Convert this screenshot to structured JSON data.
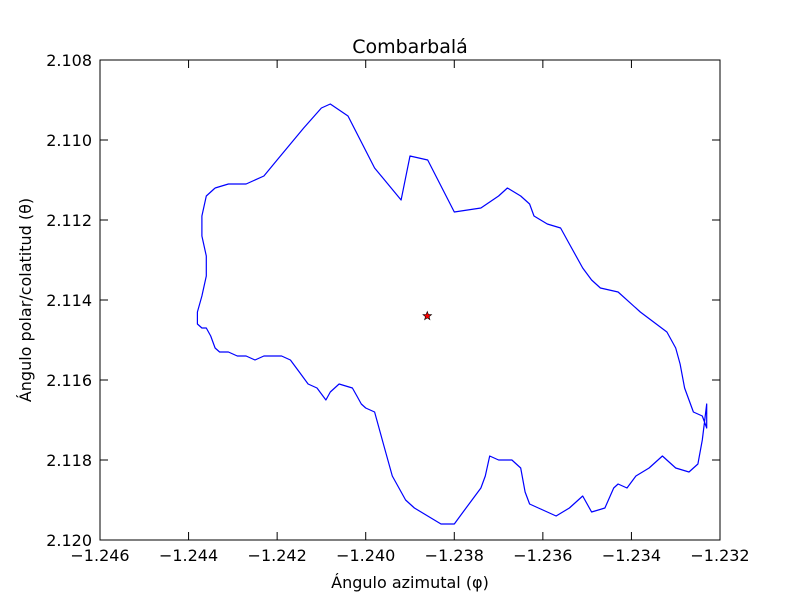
{
  "chart_data": {
    "type": "line",
    "title": "Combarbalá",
    "xlabel": "Ángulo azimutal (φ)",
    "ylabel": "Ángulo polar/colatitud (θ)",
    "xlim": [
      -1.246,
      -1.232
    ],
    "ylim": [
      2.12,
      2.108
    ],
    "y_inverted": true,
    "grid": false,
    "x_ticks": [
      -1.246,
      -1.244,
      -1.242,
      -1.24,
      -1.238,
      -1.236,
      -1.234,
      -1.232
    ],
    "x_tick_labels": [
      "−1.246",
      "−1.244",
      "−1.242",
      "−1.240",
      "−1.238",
      "−1.236",
      "−1.234",
      "−1.232"
    ],
    "y_ticks": [
      2.108,
      2.11,
      2.112,
      2.114,
      2.116,
      2.118,
      2.12
    ],
    "y_tick_labels": [
      "2.108",
      "2.110",
      "2.112",
      "2.114",
      "2.116",
      "2.118",
      "2.120"
    ],
    "colors": {
      "boundary": "#0000ff",
      "center_fill": "#ff0000",
      "center_edge": "#000000"
    },
    "series": [
      {
        "marker": "none",
        "color": "#0000ff",
        "x": [
          -1.2434,
          -1.2431,
          -1.2427,
          -1.2423,
          -1.242,
          -1.2417,
          -1.2414,
          -1.241,
          -1.2408,
          -1.2404,
          -1.2398,
          -1.2392,
          -1.239,
          -1.2386,
          -1.238,
          -1.2374,
          -1.237,
          -1.2368,
          -1.2365,
          -1.2363,
          -1.2362,
          -1.2359,
          -1.2356,
          -1.2354,
          -1.2351,
          -1.2349,
          -1.2347,
          -1.2343,
          -1.2338,
          -1.2332,
          -1.233,
          -1.2329,
          -1.2328,
          -1.2326,
          -1.2324,
          -1.2323,
          -1.2323,
          -1.2324,
          -1.2325,
          -1.2327,
          -1.233,
          -1.2333,
          -1.2336,
          -1.2339,
          -1.2341,
          -1.2343,
          -1.2344,
          -1.2346,
          -1.2349,
          -1.2351,
          -1.2354,
          -1.2357,
          -1.2359,
          -1.2361,
          -1.2363,
          -1.2364,
          -1.2365,
          -1.2367,
          -1.237,
          -1.2372,
          -1.2373,
          -1.2374,
          -1.2376,
          -1.2378,
          -1.238,
          -1.2383,
          -1.2386,
          -1.2389,
          -1.2391,
          -1.2394,
          -1.2396,
          -1.2398,
          -1.24,
          -1.2401,
          -1.2402,
          -1.2403,
          -1.2406,
          -1.2408,
          -1.2409,
          -1.2411,
          -1.2413,
          -1.2415,
          -1.2417,
          -1.2419,
          -1.2421,
          -1.2423,
          -1.2425,
          -1.2427,
          -1.2429,
          -1.2431,
          -1.2433,
          -1.2434,
          -1.2435,
          -1.2436,
          -1.2437,
          -1.2438,
          -1.2438,
          -1.2437,
          -1.2436,
          -1.2436,
          -1.2437,
          -1.2437,
          -1.2436,
          -1.2434
        ],
        "y": [
          2.1112,
          2.1111,
          2.1111,
          2.1109,
          2.1105,
          2.1101,
          2.1097,
          2.1092,
          2.1091,
          2.1094,
          2.1107,
          2.1115,
          2.1104,
          2.1105,
          2.1118,
          2.1117,
          2.1114,
          2.1112,
          2.1114,
          2.1116,
          2.1119,
          2.1121,
          2.1122,
          2.1126,
          2.1132,
          2.1135,
          2.1137,
          2.1138,
          2.1143,
          2.1148,
          2.1152,
          2.1156,
          2.1162,
          2.1168,
          2.1169,
          2.1172,
          2.1166,
          2.1175,
          2.1181,
          2.1183,
          2.1182,
          2.1179,
          2.1182,
          2.1184,
          2.1187,
          2.1186,
          2.1187,
          2.1192,
          2.1193,
          2.1189,
          2.1192,
          2.1194,
          2.1193,
          2.1192,
          2.1191,
          2.1188,
          2.1182,
          2.118,
          2.118,
          2.1179,
          2.1184,
          2.1187,
          2.119,
          2.1193,
          2.1196,
          2.1196,
          2.1194,
          2.1192,
          2.119,
          2.1184,
          2.1176,
          2.1168,
          2.1167,
          2.1166,
          2.1164,
          2.1162,
          2.1161,
          2.1163,
          2.1165,
          2.1162,
          2.1161,
          2.1158,
          2.1155,
          2.1154,
          2.1154,
          2.1154,
          2.1155,
          2.1154,
          2.1154,
          2.1153,
          2.1153,
          2.1152,
          2.1149,
          2.1147,
          2.1147,
          2.1146,
          2.1143,
          2.1139,
          2.1134,
          2.1129,
          2.1124,
          2.1119,
          2.1114,
          2.1112
        ]
      },
      {
        "marker": "star",
        "color": "#ff0000",
        "x": [
          -1.23861
        ],
        "y": [
          2.1144
        ]
      }
    ]
  }
}
